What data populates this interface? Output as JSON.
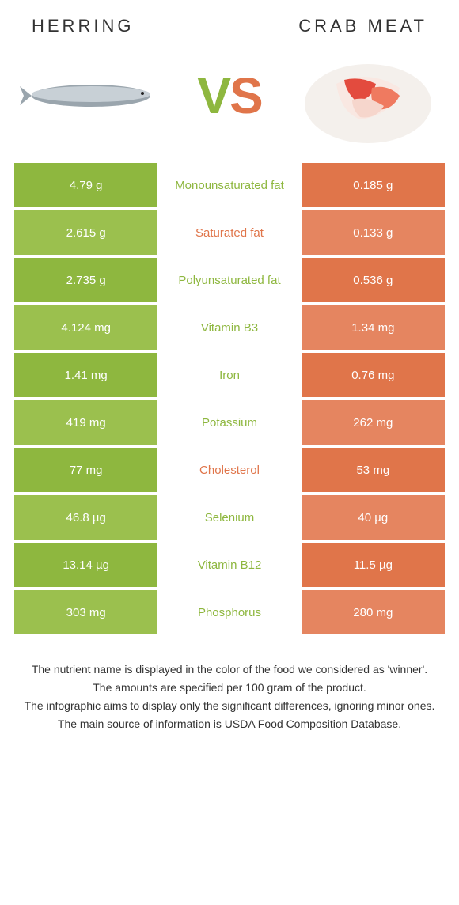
{
  "header": {
    "left_title": "HERRING",
    "right_title": "CRAB MEAT",
    "vs_text": "VS"
  },
  "colors": {
    "left": "#8eb73f",
    "right": "#e0754a",
    "left_alt": "#9bc04e",
    "right_alt": "#e58560",
    "vs_left": "#8eb73f",
    "vs_right": "#e0754a"
  },
  "rows": [
    {
      "left": "4.79 g",
      "label": "Monounsaturated fat",
      "right": "0.185 g",
      "winner": "left"
    },
    {
      "left": "2.615 g",
      "label": "Saturated fat",
      "right": "0.133 g",
      "winner": "right"
    },
    {
      "left": "2.735 g",
      "label": "Polyunsaturated fat",
      "right": "0.536 g",
      "winner": "left"
    },
    {
      "left": "4.124 mg",
      "label": "Vitamin B3",
      "right": "1.34 mg",
      "winner": "left"
    },
    {
      "left": "1.41 mg",
      "label": "Iron",
      "right": "0.76 mg",
      "winner": "left"
    },
    {
      "left": "419 mg",
      "label": "Potassium",
      "right": "262 mg",
      "winner": "left"
    },
    {
      "left": "77 mg",
      "label": "Cholesterol",
      "right": "53 mg",
      "winner": "right"
    },
    {
      "left": "46.8 µg",
      "label": "Selenium",
      "right": "40 µg",
      "winner": "left"
    },
    {
      "left": "13.14 µg",
      "label": "Vitamin B12",
      "right": "11.5 µg",
      "winner": "left"
    },
    {
      "left": "303 mg",
      "label": "Phosphorus",
      "right": "280 mg",
      "winner": "left"
    }
  ],
  "notes": [
    "The nutrient name is displayed in the color of the food we considered as 'winner'.",
    "The amounts are specified per 100 gram of the product.",
    "The infographic aims to display only the significant differences, ignoring minor ones.",
    "The main source of information is USDA Food Composition Database."
  ]
}
